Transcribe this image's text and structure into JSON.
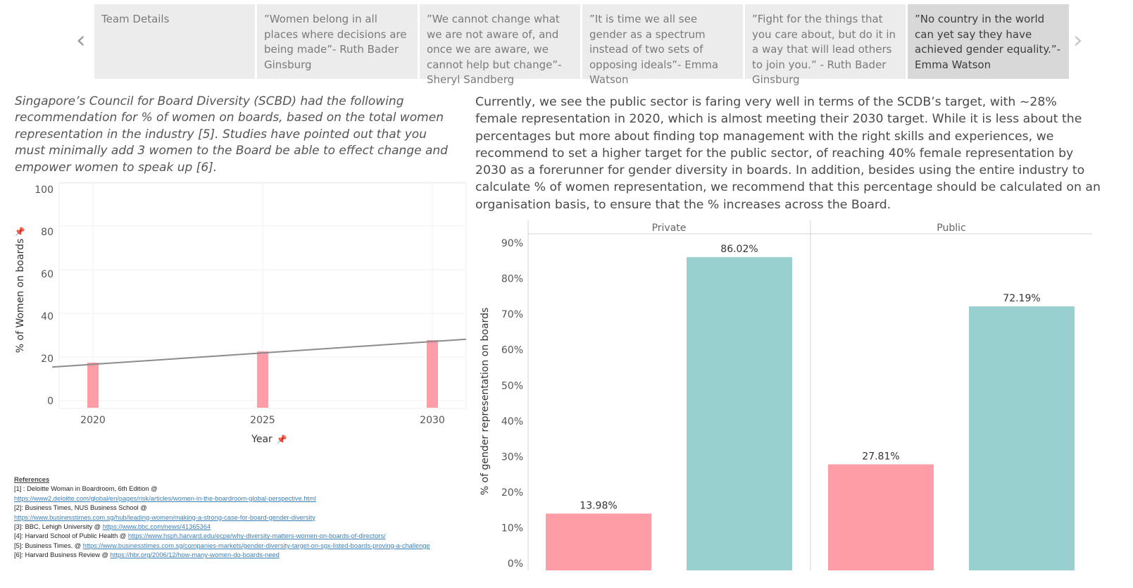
{
  "nav": {
    "prev": "‹",
    "next": "›"
  },
  "story_points": [
    {
      "label": "Team Details",
      "active": false
    },
    {
      "label": "”Women belong in all places where decisions are being made”- Ruth Bader Ginsburg",
      "active": false
    },
    {
      "label": "”We cannot change what we are not aware of, and once we are aware, we cannot help but change”- Sheryl Sandberg",
      "active": false
    },
    {
      "label": "”It is time we all see gender as a spectrum instead of two sets of opposing ideals”- Emma Watson",
      "active": false
    },
    {
      "label": "”Fight for the things that you care about, but do it in a way that will lead others to join you.” - Ruth Bader Ginsburg",
      "active": false
    },
    {
      "label": "”No country in the world can yet say they have achieved gender equality.”-Emma Watson",
      "active": true
    }
  ],
  "left_text": "Singapore’s Council for Board Diversity (SCBD) had the following recommendation for % of women on boards, based on the total women representation in the industry [5]. Studies have pointed out that you must minimally add 3 women to the Board be able to effect change and empower women to speak up [6].",
  "right_text": "Currently, we see the public sector is faring very well in terms of the SCDB’s target, with ~28% female representation in 2020, which is almost meeting their 2030 target. While it is less about the percentages but more about finding top management with the right skills and experiences, we recommend to set a higher target for the public sector, of reaching 40% female representation by 2030 as a forerunner for gender diversity in boards. In addition, besides using the entire industry to calculate % of women representation, we recommend that this percentage should be calculated on an organisation basis, to ensure that the % increases across the Board.",
  "references": {
    "title": "References",
    "items": [
      {
        "text": "[1] : Deloitte Woman in Boardroom, 6th Edition @",
        "link": "https://www2.deloitte.com/global/en/pages/risk/articles/women-in-the-boardroom-global-perspective.html",
        "link_newline": true
      },
      {
        "text": "[2]: Business Times, NUS Business School @",
        "link": "https://www.businesstimes.com.sg/hub/leading-women/making-a-strong-case-for-board-gender-diversity",
        "link_newline": true
      },
      {
        "text": "[3]: BBC, Lehigh University @",
        "link": "https://www.bbc.com/news/41365364",
        "link_newline": false
      },
      {
        "text": "[4]: Harvard School of Public Health @",
        "link": "https://www.hsph.harvard.edu/ecpe/why-diversity-matters-women-on-boards-of-directors/",
        "link_newline": false
      },
      {
        "text": "[5]: Business Times. @",
        "link": "https://www.businesstimes.com.sg/companies-markets/gender-diversity-target-on-sgx-listed-boards-proving-a-challenge",
        "link_newline": false
      },
      {
        "text": "[6]: Harvard Business Review @",
        "link": "https://hbr.org/2006/12/how-many-women-do-boards-need",
        "link_newline": false
      }
    ]
  },
  "colors": {
    "pink_bar": "#ff9da7",
    "teal_bar": "#98cfcf",
    "trend_line": "#8c8c8c"
  },
  "chart_data": [
    {
      "type": "bar",
      "categories": [
        "2020",
        "2025",
        "2030"
      ],
      "values": [
        20,
        25,
        30
      ],
      "trend_line": {
        "x": [
          2018.8,
          2031
        ],
        "y": [
          19,
          31
        ]
      },
      "xlabel": "Year",
      "ylabel": "% of Women on boards",
      "ylim": [
        0,
        100
      ],
      "yticks": [
        "0",
        "20",
        "40",
        "60",
        "80",
        "100"
      ],
      "x_pin_icon": "pin-icon",
      "y_pin_icon": "pin-icon",
      "grid": true
    },
    {
      "type": "bar",
      "panels": [
        {
          "name": "Private",
          "values": [
            13.98,
            86.02
          ],
          "labels": [
            "13.98%",
            "86.02%"
          ]
        },
        {
          "name": "Public",
          "values": [
            27.81,
            72.19
          ],
          "labels": [
            "27.81%",
            "72.19%"
          ]
        }
      ],
      "ylabel": "% of gender representation on boards",
      "ylim": [
        0,
        95
      ],
      "yticks": [
        "0%",
        "10%",
        "20%",
        "30%",
        "40%",
        "50%",
        "60%",
        "70%",
        "80%",
        "90%"
      ],
      "grid": false
    }
  ]
}
